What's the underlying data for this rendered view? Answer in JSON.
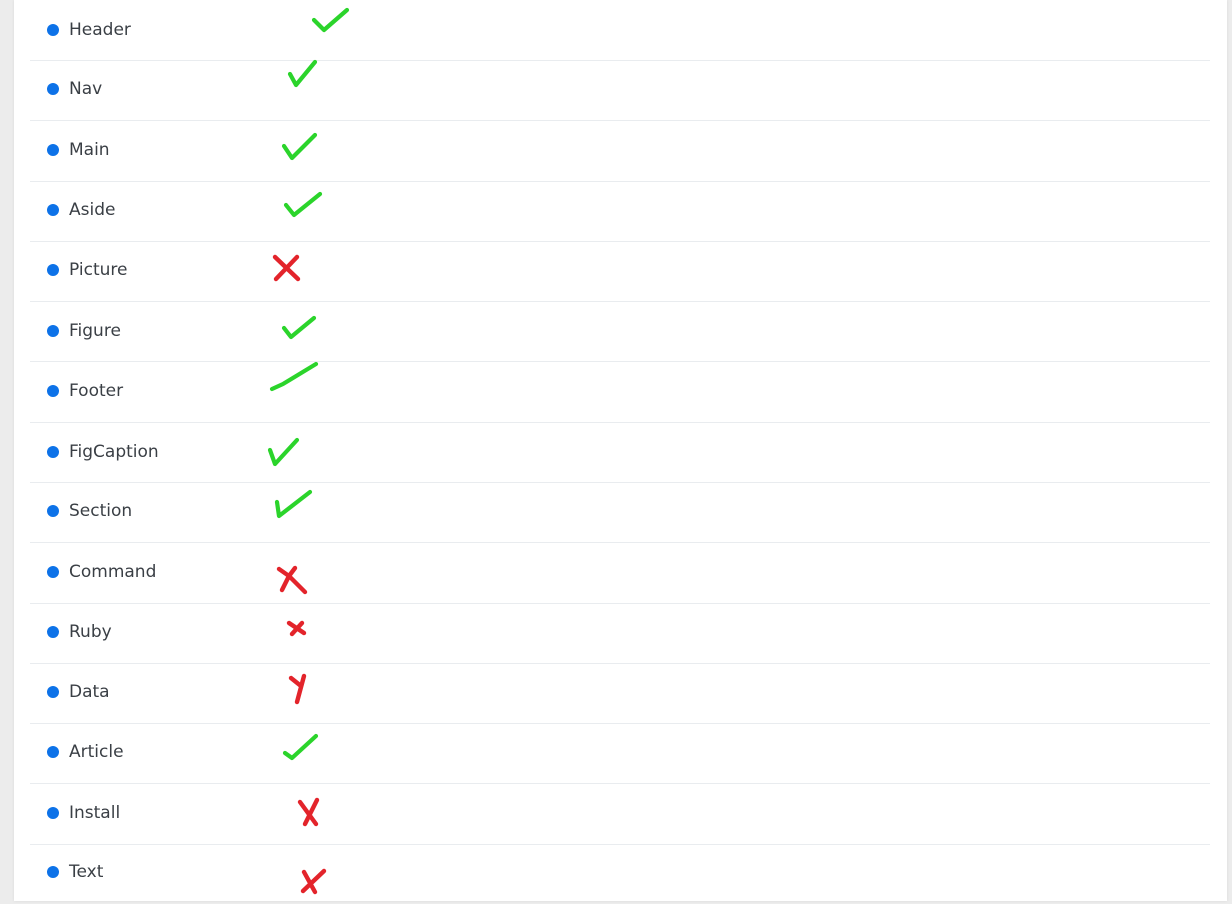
{
  "colors": {
    "bullet": "#0d72e8",
    "supported": "#2bd42b",
    "unsupported": "#e3242b"
  },
  "items": [
    {
      "label": "Header",
      "supported": true
    },
    {
      "label": "Nav",
      "supported": true
    },
    {
      "label": "Main",
      "supported": true
    },
    {
      "label": "Aside",
      "supported": true
    },
    {
      "label": "Picture",
      "supported": false
    },
    {
      "label": "Figure",
      "supported": true
    },
    {
      "label": "Footer",
      "supported": true
    },
    {
      "label": "FigCaption",
      "supported": true
    },
    {
      "label": "Section",
      "supported": true
    },
    {
      "label": "Command",
      "supported": false
    },
    {
      "label": "Ruby",
      "supported": false
    },
    {
      "label": "Data",
      "supported": false
    },
    {
      "label": "Article",
      "supported": true
    },
    {
      "label": "Install",
      "supported": false
    },
    {
      "label": "Text",
      "supported": false
    }
  ]
}
